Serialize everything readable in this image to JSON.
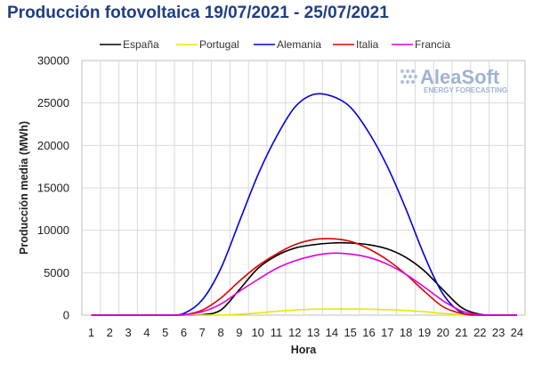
{
  "title": "Producción fotovoltaica 19/07/2021 - 25/07/2021",
  "watermark": {
    "brand": "AleaSoft",
    "tagline": "ENERGY FORECASTING"
  },
  "chart_data": {
    "type": "line",
    "title": "Producción fotovoltaica 19/07/2021 - 25/07/2021",
    "xlabel": "Hora",
    "ylabel": "Producción media (MWh)",
    "categories": [
      "1",
      "2",
      "3",
      "4",
      "5",
      "6",
      "7",
      "8",
      "9",
      "10",
      "11",
      "12",
      "13",
      "14",
      "15",
      "16",
      "17",
      "18",
      "19",
      "20",
      "21",
      "22",
      "23",
      "24"
    ],
    "x": [
      1,
      2,
      3,
      4,
      5,
      6,
      7,
      8,
      9,
      10,
      11,
      12,
      13,
      14,
      15,
      16,
      17,
      18,
      19,
      20,
      21,
      22,
      23,
      24
    ],
    "ylim": [
      0,
      30000
    ],
    "yticks": [
      0,
      5000,
      10000,
      15000,
      20000,
      25000,
      30000
    ],
    "grid": true,
    "legend_position": "top",
    "series": [
      {
        "name": "España",
        "color": "#000000",
        "values": [
          0,
          0,
          0,
          0,
          0,
          0,
          50,
          600,
          3000,
          5500,
          7000,
          7900,
          8300,
          8500,
          8500,
          8300,
          7800,
          6800,
          5200,
          3000,
          900,
          100,
          0,
          0
        ]
      },
      {
        "name": "Portugal",
        "color": "#e8e800",
        "values": [
          0,
          0,
          0,
          0,
          0,
          0,
          0,
          20,
          100,
          250,
          450,
          600,
          700,
          720,
          720,
          700,
          650,
          550,
          400,
          200,
          50,
          0,
          0,
          0
        ]
      },
      {
        "name": "Alemania",
        "color": "#0000e0",
        "values": [
          0,
          0,
          0,
          0,
          0,
          200,
          1800,
          5500,
          11000,
          16500,
          21000,
          24500,
          26000,
          25800,
          24500,
          21500,
          17500,
          12500,
          7000,
          2500,
          300,
          0,
          0,
          0
        ]
      },
      {
        "name": "Italia",
        "color": "#e00000",
        "values": [
          0,
          0,
          0,
          0,
          0,
          50,
          600,
          2000,
          4000,
          5800,
          7200,
          8300,
          8900,
          9000,
          8700,
          7800,
          6500,
          4800,
          2800,
          1000,
          200,
          0,
          0,
          0
        ]
      },
      {
        "name": "Francia",
        "color": "#e000e0",
        "values": [
          0,
          0,
          0,
          0,
          0,
          50,
          400,
          1300,
          2800,
          4200,
          5500,
          6400,
          7000,
          7300,
          7200,
          6800,
          6000,
          4800,
          3300,
          1700,
          500,
          50,
          0,
          0
        ]
      }
    ]
  }
}
